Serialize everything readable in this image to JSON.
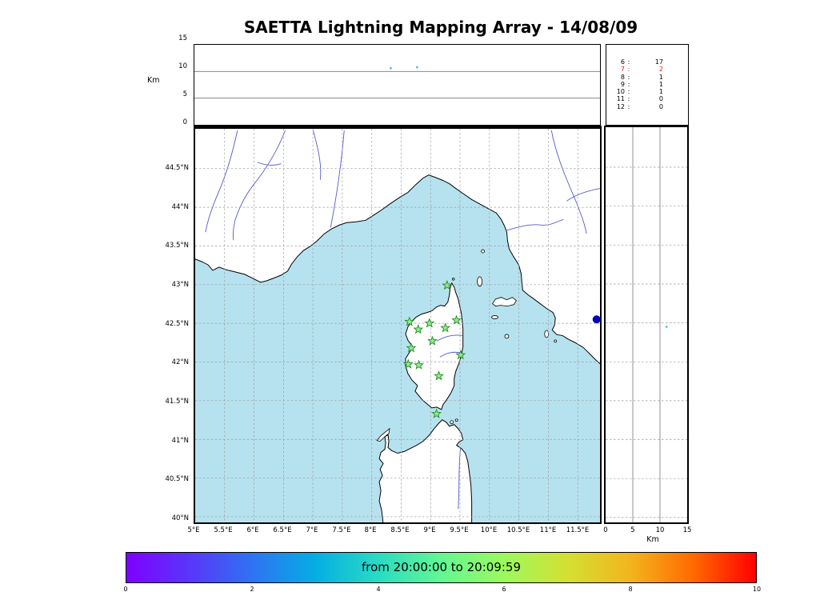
{
  "title": "SAETTA Lightning Mapping Array - 14/08/09",
  "top_panel": {
    "y_unit": "Km",
    "y_ticks": [
      "15",
      "10",
      "5",
      "0"
    ]
  },
  "stats_panel": {
    "separator": ":"
  },
  "map_panel": {
    "lat_ticks": [
      "44.5°N",
      "44°N",
      "43.5°N",
      "43°N",
      "42.5°N",
      "42°N",
      "41.5°N",
      "41°N",
      "40.5°N",
      "40°N"
    ],
    "lon_ticks": [
      "5°E",
      "5.5°E",
      "6°E",
      "6.5°E",
      "7°E",
      "7.5°E",
      "8°E",
      "8.5°E",
      "9°E",
      "9.5°E",
      "10°E",
      "10.5°E",
      "11°E",
      "11.5°E"
    ]
  },
  "right_panel": {
    "x_unit": "Km",
    "x_ticks": [
      "0",
      "5",
      "10",
      "15"
    ]
  },
  "colors": {
    "sea": "#b6e2ef",
    "land": "#ffffff",
    "coast": "#000000",
    "river": "#5757cf",
    "grid": "#9b9b9b",
    "panel_grid": "#777777",
    "station_fill": "#90ee90",
    "station_edge": "#228b22",
    "flash_dot": "#0000bb",
    "point": "#46c3dc",
    "highlight": "#d42222"
  },
  "chart_data": [
    {
      "type": "scatter",
      "name": "altitude-profile-top",
      "ylabel": "Km",
      "ylim": [
        0,
        15
      ],
      "grid_lines_km": [
        5,
        10
      ],
      "points": [
        {
          "x_frac": 0.484,
          "alt_km": 10.6
        },
        {
          "x_frac": 0.549,
          "alt_km": 10.8
        }
      ]
    },
    {
      "type": "scatter",
      "name": "plan-view-map",
      "lon_range": [
        5.0,
        11.88
      ],
      "lat_range": [
        39.93,
        45.01
      ],
      "grid_step_deg": 0.5,
      "stations_lonlat": [
        [
          9.28,
          42.99
        ],
        [
          8.64,
          42.52
        ],
        [
          8.98,
          42.5
        ],
        [
          8.79,
          42.42
        ],
        [
          9.25,
          42.44
        ],
        [
          9.44,
          42.54
        ],
        [
          9.03,
          42.27
        ],
        [
          8.67,
          42.18
        ],
        [
          8.62,
          41.97
        ],
        [
          8.8,
          41.96
        ],
        [
          9.14,
          41.82
        ],
        [
          9.51,
          42.09
        ],
        [
          9.1,
          41.33
        ]
      ],
      "flash_lonlat": [
        11.82,
        42.55
      ]
    },
    {
      "type": "table",
      "name": "station-count-histogram",
      "rows": [
        [
          6,
          17
        ],
        [
          7,
          2
        ],
        [
          8,
          1
        ],
        [
          9,
          1
        ],
        [
          10,
          1
        ],
        [
          11,
          0
        ],
        [
          12,
          0
        ]
      ],
      "highlight_value": 7
    },
    {
      "type": "scatter",
      "name": "altitude-profile-right",
      "xlabel": "Km",
      "xlim": [
        0,
        15
      ],
      "grid_lines_km": [
        5,
        10
      ],
      "points": [
        {
          "lat": 42.45,
          "alt_km": 11.2
        }
      ]
    },
    {
      "type": "colorbar",
      "name": "time-colorbar",
      "label": "from 20:00:00 to 20:09:59",
      "range": [
        0,
        10
      ],
      "tick_labels": [
        "0",
        "2",
        "4",
        "6",
        "8",
        "10"
      ],
      "gradient": [
        "#8000ff",
        "#5936fa",
        "#2e73f3",
        "#04aee4",
        "#2adbc3",
        "#63f793",
        "#9cf95e",
        "#d3e032",
        "#f2b51e",
        "#ff6a00",
        "#ff0000"
      ]
    }
  ]
}
